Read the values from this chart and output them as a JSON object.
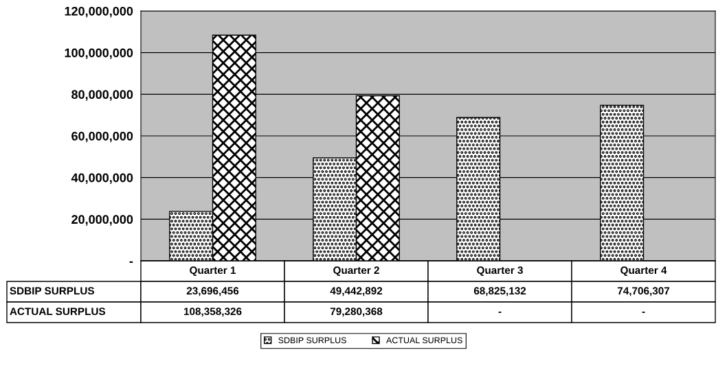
{
  "chart_data": {
    "type": "bar",
    "categories": [
      "Quarter 1",
      "Quarter 2",
      "Quarter 3",
      "Quarter 4"
    ],
    "series": [
      {
        "name": "SDBIP SURPLUS",
        "color": "#000000",
        "values": [
          23696456,
          49442892,
          68825132,
          74706307
        ],
        "value_labels": [
          "23,696,456",
          "49,442,892",
          "68,825,132",
          "74,706,307"
        ]
      },
      {
        "name": "ACTUAL SURPLUS",
        "color": "#000000",
        "values": [
          108358326,
          79280368,
          null,
          null
        ],
        "value_labels": [
          "108,358,326",
          "79,280,368",
          "-",
          "-"
        ]
      }
    ],
    "ylim": [
      0,
      120000000
    ],
    "yticks": [
      {
        "value": 0,
        "label": "-"
      },
      {
        "value": 20000000,
        "label": "20,000,000"
      },
      {
        "value": 40000000,
        "label": "40,000,000"
      },
      {
        "value": 60000000,
        "label": "60,000,000"
      },
      {
        "value": 80000000,
        "label": "80,000,000"
      },
      {
        "value": 100000000,
        "label": "100,000,000"
      },
      {
        "value": 120000000,
        "label": "120,000,000"
      }
    ],
    "grid": "y",
    "legend": "bottom"
  }
}
